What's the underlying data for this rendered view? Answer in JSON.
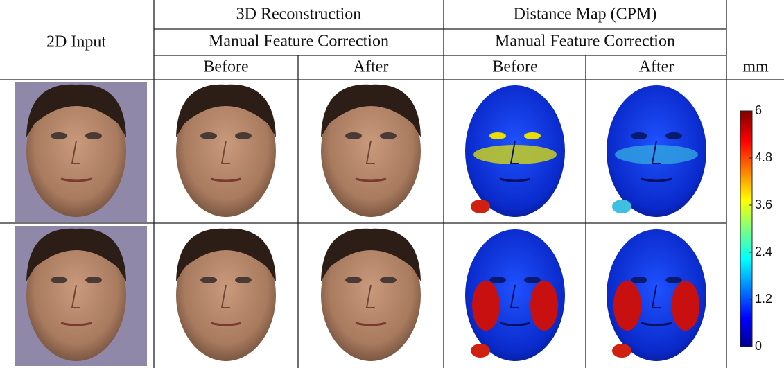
{
  "header": {
    "input_label": "2D Input",
    "groups": [
      {
        "title": "3D Reconstruction",
        "subtitle": "Manual Feature Correction",
        "columns": [
          "Before",
          "After"
        ]
      },
      {
        "title": "Distance Map (CPM)",
        "subtitle": "Manual Feature Correction",
        "columns": [
          "Before",
          "After"
        ]
      }
    ],
    "unit": "mm"
  },
  "colorbar": {
    "lim": [
      0,
      6
    ],
    "ticks": [
      0,
      1.2,
      2.4,
      3.6,
      4.8,
      6
    ]
  }
}
